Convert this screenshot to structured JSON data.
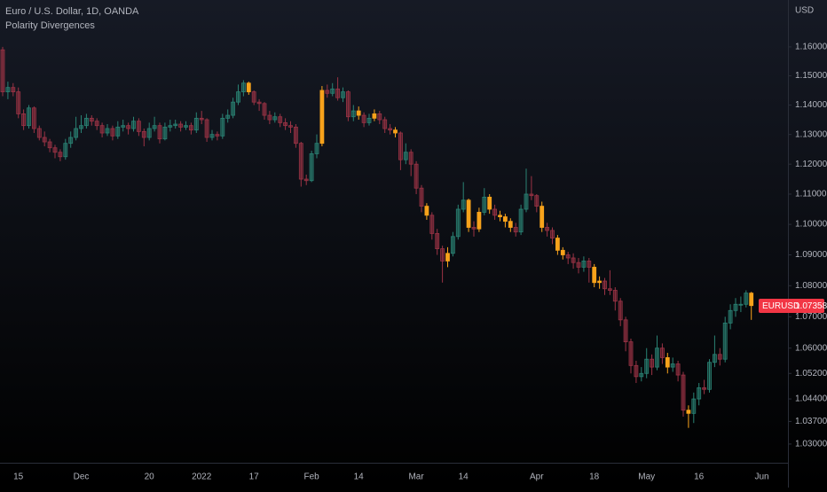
{
  "chart_data": {
    "type": "candlestick",
    "title": "Euro / U.S. Dollar, 1D, OANDA",
    "subtitle": "Polarity Divergences",
    "currency": "USD",
    "symbol": "EURUSD",
    "categories": [
      null,
      null,
      null,
      "15",
      null,
      null,
      null,
      null,
      null,
      null,
      null,
      null,
      null,
      null,
      null,
      "Dec",
      null,
      null,
      null,
      null,
      null,
      null,
      null,
      null,
      null,
      null,
      null,
      null,
      "20",
      null,
      null,
      null,
      null,
      null,
      null,
      null,
      null,
      null,
      "2022",
      null,
      null,
      null,
      null,
      null,
      null,
      null,
      null,
      null,
      "17",
      null,
      null,
      null,
      null,
      null,
      null,
      null,
      null,
      null,
      null,
      "Feb",
      null,
      null,
      null,
      null,
      null,
      null,
      null,
      null,
      "14",
      null,
      null,
      null,
      null,
      null,
      null,
      null,
      null,
      null,
      null,
      "Mar",
      null,
      null,
      null,
      null,
      null,
      null,
      null,
      null,
      "14",
      null,
      null,
      null,
      null,
      null,
      null,
      null,
      null,
      null,
      null,
      null,
      null,
      null,
      "Apr",
      null,
      null,
      null,
      null,
      null,
      null,
      null,
      null,
      null,
      null,
      "18",
      null,
      null,
      null,
      null,
      null,
      null,
      null,
      null,
      null,
      "May",
      null,
      null,
      null,
      null,
      null,
      null,
      null,
      null,
      null,
      "16",
      null,
      null,
      null,
      null,
      null,
      null,
      null,
      null,
      null,
      null,
      null,
      "Jun"
    ],
    "open": [
      1.159,
      1.1445,
      1.146,
      1.1445,
      1.137,
      1.133,
      1.139,
      1.132,
      1.129,
      1.1275,
      1.1255,
      1.124,
      1.1225,
      1.127,
      1.129,
      1.132,
      1.133,
      1.1355,
      1.1345,
      1.133,
      1.1305,
      1.132,
      1.1295,
      1.1325,
      1.133,
      1.132,
      1.1345,
      1.131,
      1.129,
      1.132,
      1.133,
      1.1285,
      1.1325,
      1.133,
      1.1335,
      1.1325,
      1.133,
      1.1315,
      1.1355,
      1.135,
      1.129,
      1.13,
      1.1295,
      1.1355,
      1.1365,
      1.141,
      1.1445,
      1.1475,
      1.1445,
      1.141,
      1.1405,
      1.1365,
      1.135,
      1.136,
      1.134,
      1.133,
      1.1325,
      1.127,
      1.115,
      1.1145,
      1.1235,
      1.127,
      1.145,
      1.144,
      1.1455,
      1.1425,
      1.1445,
      1.136,
      1.138,
      1.1365,
      1.134,
      1.1355,
      1.137,
      1.135,
      1.132,
      1.1315,
      1.1305,
      1.1215,
      1.124,
      1.12,
      1.112,
      1.106,
      1.103,
      1.097,
      1.092,
      1.088,
      1.0905,
      1.096,
      1.105,
      1.108,
      1.099,
      1.0985,
      1.104,
      1.109,
      1.105,
      1.103,
      1.1025,
      1.101,
      1.099,
      1.0975,
      1.105,
      1.11,
      1.1095,
      1.106,
      1.099,
      1.098,
      1.0955,
      1.0915,
      1.09,
      1.089,
      1.0875,
      1.086,
      1.088,
      1.086,
      1.081,
      1.0815,
      1.079,
      1.0785,
      1.075,
      1.069,
      1.062,
      1.0545,
      1.051,
      1.052,
      1.0565,
      1.054,
      1.06,
      1.057,
      1.054,
      1.055,
      1.0515,
      1.0405,
      1.0395,
      1.044,
      1.0475,
      1.047,
      1.0555,
      1.058,
      1.0565,
      1.068,
      1.072,
      1.074,
      1.074,
      1.0776,
      null,
      null
    ],
    "high": [
      1.16,
      1.148,
      1.1475,
      1.146,
      1.1385,
      1.14,
      1.1395,
      1.133,
      1.131,
      1.1285,
      1.1265,
      1.125,
      1.1285,
      1.131,
      1.136,
      1.1365,
      1.137,
      1.1365,
      1.1355,
      1.134,
      1.1335,
      1.133,
      1.1345,
      1.135,
      1.134,
      1.136,
      1.1355,
      1.132,
      1.134,
      1.136,
      1.134,
      1.134,
      1.135,
      1.135,
      1.1345,
      1.1345,
      1.134,
      1.1375,
      1.138,
      1.1355,
      1.1315,
      1.131,
      1.137,
      1.1385,
      1.1425,
      1.147,
      1.1485,
      1.148,
      1.145,
      1.142,
      1.141,
      1.138,
      1.1375,
      1.137,
      1.1355,
      1.1345,
      1.1335,
      1.1275,
      1.1165,
      1.1245,
      1.13,
      1.1465,
      1.147,
      1.1475,
      1.1495,
      1.146,
      1.145,
      1.14,
      1.1395,
      1.1375,
      1.137,
      1.1385,
      1.138,
      1.136,
      1.1335,
      1.1325,
      1.131,
      1.127,
      1.125,
      1.121,
      1.113,
      1.107,
      1.104,
      1.0985,
      1.093,
      1.0925,
      1.0975,
      1.1065,
      1.114,
      1.1085,
      1.101,
      1.1055,
      1.112,
      1.11,
      1.1065,
      1.1045,
      1.1035,
      1.102,
      1.1005,
      1.1065,
      1.1185,
      1.116,
      1.11,
      1.1075,
      1.1005,
      1.099,
      1.0965,
      1.0925,
      1.091,
      1.0905,
      1.089,
      1.0895,
      1.089,
      1.087,
      1.083,
      1.0825,
      1.085,
      1.0795,
      1.076,
      1.07,
      1.063,
      1.056,
      1.054,
      1.06,
      1.058,
      1.064,
      1.0615,
      1.0585,
      1.057,
      1.056,
      1.0525,
      1.042,
      1.046,
      1.049,
      1.05,
      1.0565,
      1.064,
      1.06,
      1.07,
      1.074,
      1.076,
      1.0765,
      1.0785,
      1.078,
      null,
      null
    ],
    "low": [
      1.143,
      1.142,
      1.143,
      1.1355,
      1.1315,
      1.132,
      1.1305,
      1.128,
      1.126,
      1.124,
      1.122,
      1.121,
      1.1215,
      1.1255,
      1.128,
      1.1305,
      1.132,
      1.133,
      1.1315,
      1.129,
      1.1295,
      1.128,
      1.1285,
      1.131,
      1.13,
      1.131,
      1.1295,
      1.126,
      1.128,
      1.131,
      1.127,
      1.128,
      1.131,
      1.132,
      1.131,
      1.1315,
      1.13,
      1.1305,
      1.1335,
      1.1275,
      1.128,
      1.128,
      1.1285,
      1.134,
      1.1355,
      1.14,
      1.143,
      1.1435,
      1.14,
      1.138,
      1.135,
      1.1335,
      1.134,
      1.1325,
      1.1315,
      1.1305,
      1.1255,
      1.1125,
      1.113,
      1.114,
      1.122,
      1.126,
      1.1425,
      1.143,
      1.1415,
      1.141,
      1.1345,
      1.1345,
      1.135,
      1.1325,
      1.133,
      1.1345,
      1.1335,
      1.1305,
      1.13,
      1.129,
      1.118,
      1.12,
      1.116,
      1.11,
      1.104,
      1.1015,
      1.095,
      1.09,
      1.081,
      1.086,
      1.0895,
      1.095,
      1.104,
      1.0975,
      1.096,
      1.0975,
      1.103,
      1.1035,
      1.1015,
      1.101,
      1.099,
      1.0975,
      1.096,
      1.0965,
      1.104,
      1.108,
      1.104,
      1.0975,
      1.096,
      1.0935,
      1.09,
      1.0885,
      1.087,
      1.0855,
      1.084,
      1.0845,
      1.081,
      1.0795,
      1.079,
      1.077,
      1.077,
      1.072,
      1.067,
      1.059,
      1.052,
      1.049,
      1.0495,
      1.0505,
      1.0515,
      1.053,
      1.055,
      1.052,
      1.0525,
      1.0495,
      1.0385,
      1.035,
      1.0365,
      1.042,
      1.0455,
      1.046,
      1.054,
      1.0545,
      1.0555,
      1.066,
      1.07,
      1.0715,
      1.073,
      1.069,
      null,
      null
    ],
    "close": [
      1.1445,
      1.146,
      1.1445,
      1.137,
      1.133,
      1.139,
      1.132,
      1.129,
      1.1275,
      1.1255,
      1.124,
      1.1225,
      1.127,
      1.129,
      1.132,
      1.133,
      1.1355,
      1.1345,
      1.133,
      1.1305,
      1.132,
      1.1295,
      1.1325,
      1.133,
      1.132,
      1.1345,
      1.131,
      1.129,
      1.132,
      1.133,
      1.1285,
      1.1325,
      1.133,
      1.1335,
      1.1325,
      1.133,
      1.1315,
      1.1355,
      1.135,
      1.129,
      1.13,
      1.1295,
      1.1355,
      1.1365,
      1.141,
      1.1445,
      1.1475,
      1.1445,
      1.141,
      1.1405,
      1.1365,
      1.135,
      1.136,
      1.134,
      1.133,
      1.1325,
      1.127,
      1.115,
      1.1145,
      1.1235,
      1.127,
      1.145,
      1.144,
      1.1455,
      1.1425,
      1.1445,
      1.136,
      1.138,
      1.1365,
      1.134,
      1.1355,
      1.137,
      1.135,
      1.132,
      1.1315,
      1.1305,
      1.1215,
      1.124,
      1.12,
      1.112,
      1.106,
      1.103,
      1.097,
      1.092,
      1.088,
      1.0905,
      1.096,
      1.105,
      1.108,
      1.099,
      1.0985,
      1.104,
      1.109,
      1.105,
      1.103,
      1.1025,
      1.101,
      1.099,
      1.0975,
      1.105,
      1.11,
      1.1095,
      1.106,
      1.099,
      1.098,
      1.0955,
      1.0915,
      1.09,
      1.089,
      1.0875,
      1.086,
      1.088,
      1.086,
      1.081,
      1.0815,
      1.079,
      1.0785,
      1.075,
      1.069,
      1.062,
      1.0545,
      1.051,
      1.052,
      1.0565,
      1.054,
      1.06,
      1.057,
      1.054,
      1.055,
      1.0515,
      1.0405,
      1.0395,
      1.044,
      1.0475,
      1.047,
      1.0555,
      1.058,
      1.0565,
      1.068,
      1.072,
      1.074,
      1.074,
      1.0776,
      1.07358,
      null,
      null
    ],
    "up_color": "#2a8274",
    "down_color": "#9b3345",
    "highlight_color": "#f7a21b",
    "highlighted": [
      47,
      61,
      68,
      71,
      75,
      81,
      85,
      89,
      91,
      93,
      95,
      96,
      97,
      103,
      106,
      107,
      113,
      114,
      127,
      131,
      143
    ],
    "log": true,
    "ylim": [
      1.0248,
      1.1764
    ],
    "yticks": [
      {
        "value": 1.03,
        "label": "1.03000"
      },
      {
        "value": 1.037,
        "label": "1.03700"
      },
      {
        "value": 1.044,
        "label": "1.04400"
      },
      {
        "value": 1.052,
        "label": "1.05200"
      },
      {
        "value": 1.06,
        "label": "1.06000"
      },
      {
        "value": 1.07,
        "label": "1.07000"
      },
      {
        "value": 1.08,
        "label": "1.08000"
      },
      {
        "value": 1.09,
        "label": "1.09000"
      },
      {
        "value": 1.1,
        "label": "1.10000"
      },
      {
        "value": 1.11,
        "label": "1.11000"
      },
      {
        "value": 1.12,
        "label": "1.12000"
      },
      {
        "value": 1.13,
        "label": "1.13000"
      },
      {
        "value": 1.14,
        "label": "1.14000"
      },
      {
        "value": 1.15,
        "label": "1.15000"
      },
      {
        "value": 1.16,
        "label": "1.16000"
      }
    ]
  }
}
